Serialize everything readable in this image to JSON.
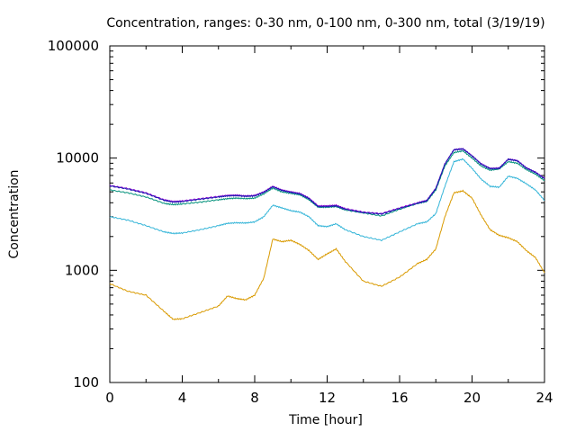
{
  "chart_data": {
    "type": "line",
    "title": "Concentration, ranges: 0-30 nm, 0-100 nm, 0-300 nm, total (3/19/19)",
    "xlabel": "Time [hour]",
    "ylabel": "Concentration",
    "xlim": [
      0,
      24
    ],
    "ylim": [
      100,
      100000
    ],
    "y_scale": "log",
    "grid": false,
    "x_ticks": [
      "0",
      "4",
      "8",
      "12",
      "16",
      "20",
      "24"
    ],
    "y_ticks": [
      "100",
      "1000",
      "10000",
      "100000"
    ],
    "x": [
      0,
      1,
      2,
      3,
      3.5,
      4,
      5,
      6,
      6.5,
      7,
      7.5,
      8,
      8.5,
      9,
      9.5,
      10,
      10.5,
      11,
      11.5,
      12,
      12.5,
      13,
      14,
      15,
      16,
      17,
      17.5,
      18,
      18.5,
      19,
      19.5,
      20,
      20.5,
      21,
      21.5,
      22,
      22.5,
      23,
      23.5,
      24
    ],
    "series": [
      {
        "color": "#d99a00",
        "values": [
          760,
          650,
          600,
          430,
          365,
          370,
          420,
          480,
          590,
          560,
          545,
          600,
          850,
          1900,
          1800,
          1850,
          1700,
          1500,
          1250,
          1400,
          1550,
          1200,
          800,
          720,
          870,
          1150,
          1250,
          1550,
          3000,
          4900,
          5100,
          4400,
          3100,
          2300,
          2050,
          1950,
          1800,
          1500,
          1300,
          950
        ]
      },
      {
        "color": "#35b5d8",
        "values": [
          3000,
          2800,
          2500,
          2200,
          2130,
          2150,
          2300,
          2500,
          2620,
          2650,
          2640,
          2700,
          3000,
          3800,
          3600,
          3400,
          3300,
          3000,
          2500,
          2450,
          2600,
          2300,
          2000,
          1850,
          2200,
          2600,
          2700,
          3200,
          5600,
          9300,
          9800,
          8100,
          6500,
          5600,
          5500,
          6900,
          6600,
          5900,
          5200,
          4200
        ]
      },
      {
        "color": "#00907a",
        "values": [
          5200,
          4900,
          4500,
          3950,
          3850,
          3900,
          4050,
          4250,
          4350,
          4400,
          4350,
          4400,
          4800,
          5400,
          5000,
          4850,
          4700,
          4250,
          3650,
          3650,
          3700,
          3450,
          3250,
          3050,
          3500,
          3950,
          4100,
          5200,
          8500,
          11200,
          11600,
          10000,
          8500,
          7800,
          8000,
          9300,
          9000,
          7900,
          7200,
          6300
        ]
      },
      {
        "color": "#9400d3",
        "values": [
          5700,
          5350,
          4900,
          4250,
          4100,
          4150,
          4350,
          4550,
          4650,
          4680,
          4600,
          4650,
          5000,
          5600,
          5200,
          5000,
          4850,
          4400,
          3750,
          3750,
          3800,
          3550,
          3300,
          3200,
          3600,
          4000,
          4200,
          5400,
          8900,
          11900,
          12100,
          10500,
          8900,
          8100,
          8150,
          9800,
          9500,
          8200,
          7500,
          6600
        ]
      },
      {
        "color": "#1a1ab0",
        "values": [
          5650,
          5300,
          4850,
          4200,
          4050,
          4100,
          4300,
          4500,
          4600,
          4630,
          4560,
          4600,
          4950,
          5550,
          5150,
          4950,
          4800,
          4350,
          3700,
          3700,
          3750,
          3500,
          3270,
          3170,
          3560,
          3960,
          4160,
          5350,
          8850,
          11850,
          12050,
          10450,
          8850,
          8050,
          8100,
          9750,
          9450,
          8150,
          7450,
          6550
        ]
      }
    ]
  }
}
